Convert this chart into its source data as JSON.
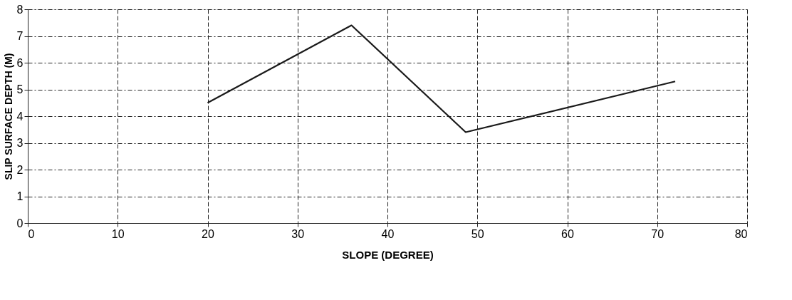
{
  "chart_data": {
    "type": "line",
    "xlabel": "SLOPE (DEGREE)",
    "ylabel": "SLIP SURFACE DEPTH (M)",
    "x": [
      20,
      36,
      48.7,
      72
    ],
    "series": [
      {
        "color": "#1a1a1a",
        "values": [
          4.5,
          7.4,
          3.4,
          5.3
        ]
      }
    ],
    "xlim": [
      0,
      80
    ],
    "xticks": [
      0,
      10,
      20,
      30,
      40,
      50,
      60,
      70,
      80
    ],
    "ylim": [
      0,
      8
    ],
    "yticks": [
      0,
      1,
      2,
      3,
      4,
      5,
      6,
      7,
      8
    ],
    "grid": true,
    "line_style": "solid",
    "marker": "none",
    "legend": false
  }
}
